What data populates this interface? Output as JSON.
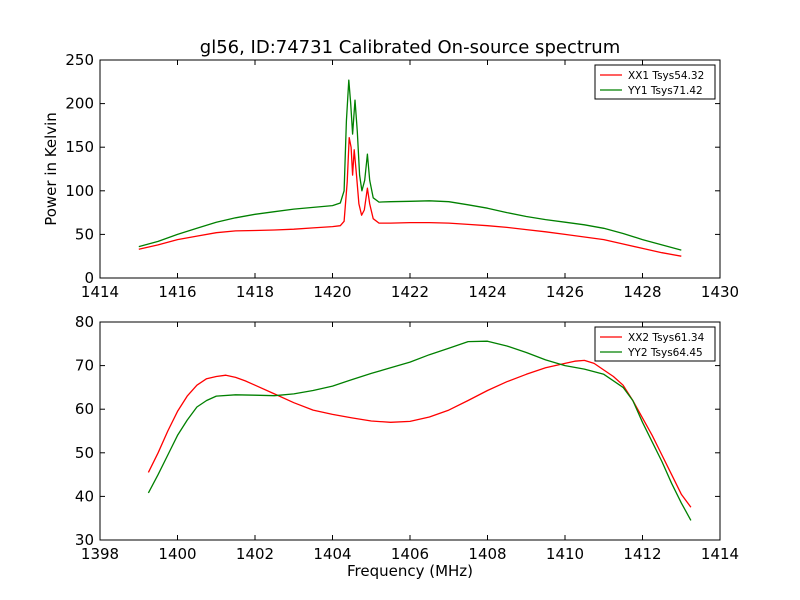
{
  "chart_data": [
    {
      "type": "line",
      "title": "gl56, ID:74731 Calibrated On-source spectrum",
      "xlabel": "",
      "ylabel": "Power in Kelvin",
      "xlim": [
        1414,
        1430
      ],
      "ylim": [
        0,
        250
      ],
      "xticks": [
        "1414",
        "1416",
        "1418",
        "1420",
        "1422",
        "1424",
        "1426",
        "1428",
        "1430"
      ],
      "yticks": [
        "0",
        "50",
        "100",
        "150",
        "200",
        "250"
      ],
      "grid": false,
      "legend_position": "top-right",
      "series": [
        {
          "name": "XX1 Tsys54.32",
          "color": "#ff0000",
          "points": [
            [
              1415.0,
              33
            ],
            [
              1415.5,
              38
            ],
            [
              1416.0,
              44
            ],
            [
              1416.5,
              48
            ],
            [
              1417.0,
              52
            ],
            [
              1417.5,
              54
            ],
            [
              1418.0,
              54.5
            ],
            [
              1418.5,
              55
            ],
            [
              1419.0,
              56
            ],
            [
              1419.5,
              57.5
            ],
            [
              1420.0,
              59
            ],
            [
              1420.2,
              60
            ],
            [
              1420.3,
              65
            ],
            [
              1420.38,
              110
            ],
            [
              1420.43,
              161
            ],
            [
              1420.48,
              150
            ],
            [
              1420.52,
              118
            ],
            [
              1420.56,
              147
            ],
            [
              1420.62,
              118
            ],
            [
              1420.68,
              85
            ],
            [
              1420.75,
              72
            ],
            [
              1420.82,
              78
            ],
            [
              1420.9,
              103
            ],
            [
              1420.96,
              85
            ],
            [
              1421.05,
              68
            ],
            [
              1421.2,
              63
            ],
            [
              1421.5,
              63
            ],
            [
              1422.0,
              63.5
            ],
            [
              1422.5,
              63.5
            ],
            [
              1423.0,
              63
            ],
            [
              1423.5,
              61.5
            ],
            [
              1424.0,
              60
            ],
            [
              1424.5,
              58
            ],
            [
              1425.0,
              55.5
            ],
            [
              1425.5,
              53
            ],
            [
              1426.0,
              50
            ],
            [
              1426.5,
              47
            ],
            [
              1427.0,
              44
            ],
            [
              1427.5,
              39
            ],
            [
              1428.0,
              34
            ],
            [
              1428.5,
              29
            ],
            [
              1429.0,
              25
            ]
          ]
        },
        {
          "name": "YY1 Tsys71.42",
          "color": "#008000",
          "points": [
            [
              1415.0,
              36
            ],
            [
              1415.5,
              42
            ],
            [
              1416.0,
              50
            ],
            [
              1416.5,
              57
            ],
            [
              1417.0,
              64
            ],
            [
              1417.5,
              69
            ],
            [
              1418.0,
              73
            ],
            [
              1418.5,
              76
            ],
            [
              1419.0,
              79
            ],
            [
              1419.5,
              81
            ],
            [
              1420.0,
              83
            ],
            [
              1420.2,
              86
            ],
            [
              1420.3,
              100
            ],
            [
              1420.36,
              180
            ],
            [
              1420.42,
              227
            ],
            [
              1420.47,
              200
            ],
            [
              1420.52,
              165
            ],
            [
              1420.58,
              204
            ],
            [
              1420.64,
              168
            ],
            [
              1420.7,
              118
            ],
            [
              1420.76,
              100
            ],
            [
              1420.83,
              112
            ],
            [
              1420.9,
              142
            ],
            [
              1420.96,
              112
            ],
            [
              1421.05,
              92
            ],
            [
              1421.2,
              87
            ],
            [
              1421.5,
              87.5
            ],
            [
              1422.0,
              88
            ],
            [
              1422.5,
              88.5
            ],
            [
              1423.0,
              87.5
            ],
            [
              1423.5,
              84
            ],
            [
              1424.0,
              80
            ],
            [
              1424.5,
              75
            ],
            [
              1425.0,
              70.5
            ],
            [
              1425.5,
              67
            ],
            [
              1426.0,
              64
            ],
            [
              1426.5,
              61
            ],
            [
              1427.0,
              57
            ],
            [
              1427.5,
              51
            ],
            [
              1428.0,
              44
            ],
            [
              1428.5,
              38
            ],
            [
              1429.0,
              32
            ]
          ]
        }
      ]
    },
    {
      "type": "line",
      "title": "",
      "xlabel": "Frequency (MHz)",
      "ylabel": "",
      "xlim": [
        1398,
        1414
      ],
      "ylim": [
        30,
        80
      ],
      "xticks": [
        "1398",
        "1400",
        "1402",
        "1404",
        "1406",
        "1408",
        "1410",
        "1412",
        "1414"
      ],
      "yticks": [
        "30",
        "40",
        "50",
        "60",
        "70",
        "80"
      ],
      "grid": false,
      "legend_position": "top-right",
      "series": [
        {
          "name": "XX2 Tsys61.34",
          "color": "#ff0000",
          "points": [
            [
              1399.25,
              45.5
            ],
            [
              1399.5,
              50
            ],
            [
              1399.75,
              55
            ],
            [
              1400.0,
              59.5
            ],
            [
              1400.25,
              63
            ],
            [
              1400.5,
              65.5
            ],
            [
              1400.75,
              67
            ],
            [
              1401.0,
              67.5
            ],
            [
              1401.25,
              67.8
            ],
            [
              1401.5,
              67.3
            ],
            [
              1401.75,
              66.5
            ],
            [
              1402.0,
              65.5
            ],
            [
              1402.5,
              63.5
            ],
            [
              1403.0,
              61.5
            ],
            [
              1403.5,
              59.8
            ],
            [
              1404.0,
              58.8
            ],
            [
              1404.5,
              58
            ],
            [
              1405.0,
              57.3
            ],
            [
              1405.5,
              57
            ],
            [
              1406.0,
              57.2
            ],
            [
              1406.5,
              58.2
            ],
            [
              1407.0,
              59.8
            ],
            [
              1407.5,
              62
            ],
            [
              1408.0,
              64.3
            ],
            [
              1408.5,
              66.3
            ],
            [
              1409.0,
              68
            ],
            [
              1409.5,
              69.5
            ],
            [
              1410.0,
              70.5
            ],
            [
              1410.25,
              71
            ],
            [
              1410.5,
              71.2
            ],
            [
              1410.75,
              70.5
            ],
            [
              1411.0,
              69
            ],
            [
              1411.25,
              67.5
            ],
            [
              1411.5,
              65.5
            ],
            [
              1411.75,
              62
            ],
            [
              1412.0,
              58
            ],
            [
              1412.25,
              54
            ],
            [
              1412.5,
              49.5
            ],
            [
              1412.75,
              45
            ],
            [
              1413.0,
              40.5
            ],
            [
              1413.25,
              37.5
            ]
          ]
        },
        {
          "name": "YY2 Tsys64.45",
          "color": "#008000",
          "points": [
            [
              1399.25,
              40.8
            ],
            [
              1399.5,
              45
            ],
            [
              1399.75,
              49.5
            ],
            [
              1400.0,
              54
            ],
            [
              1400.25,
              57.5
            ],
            [
              1400.5,
              60.5
            ],
            [
              1400.75,
              62
            ],
            [
              1401.0,
              63
            ],
            [
              1401.5,
              63.3
            ],
            [
              1402.0,
              63.2
            ],
            [
              1402.5,
              63.1
            ],
            [
              1403.0,
              63.5
            ],
            [
              1403.5,
              64.3
            ],
            [
              1404.0,
              65.3
            ],
            [
              1404.5,
              66.8
            ],
            [
              1405.0,
              68.2
            ],
            [
              1405.5,
              69.5
            ],
            [
              1406.0,
              70.8
            ],
            [
              1406.5,
              72.5
            ],
            [
              1407.0,
              74
            ],
            [
              1407.5,
              75.5
            ],
            [
              1408.0,
              75.6
            ],
            [
              1408.5,
              74.5
            ],
            [
              1409.0,
              73
            ],
            [
              1409.5,
              71.3
            ],
            [
              1410.0,
              70
            ],
            [
              1410.5,
              69.2
            ],
            [
              1411.0,
              68
            ],
            [
              1411.5,
              65
            ],
            [
              1411.75,
              62
            ],
            [
              1412.0,
              57
            ],
            [
              1412.25,
              52.5
            ],
            [
              1412.5,
              48
            ],
            [
              1412.75,
              43
            ],
            [
              1413.0,
              38.5
            ],
            [
              1413.25,
              34.5
            ]
          ]
        }
      ]
    }
  ]
}
